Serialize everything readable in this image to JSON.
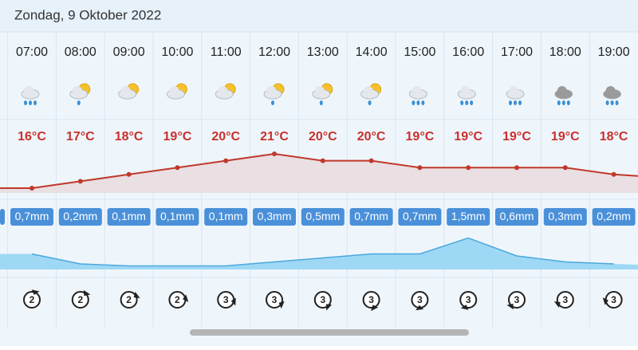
{
  "header": {
    "title": "Zondag, 9 Oktober 2022"
  },
  "hours": [
    {
      "time": "07:00",
      "temp": 16,
      "temp_label": "16°C",
      "precip": 0.7,
      "precip_label": "0,7mm",
      "wind": "2"
    },
    {
      "time": "08:00",
      "temp": 17,
      "temp_label": "17°C",
      "precip": 0.2,
      "precip_label": "0,2mm",
      "wind": "2"
    },
    {
      "time": "09:00",
      "temp": 18,
      "temp_label": "18°C",
      "precip": 0.1,
      "precip_label": "0,1mm",
      "wind": "2"
    },
    {
      "time": "10:00",
      "temp": 19,
      "temp_label": "19°C",
      "precip": 0.1,
      "precip_label": "0,1mm",
      "wind": "2"
    },
    {
      "time": "11:00",
      "temp": 20,
      "temp_label": "20°C",
      "precip": 0.1,
      "precip_label": "0,1mm",
      "wind": "3"
    },
    {
      "time": "12:00",
      "temp": 21,
      "temp_label": "21°C",
      "precip": 0.3,
      "precip_label": "0,3mm",
      "wind": "3"
    },
    {
      "time": "13:00",
      "temp": 20,
      "temp_label": "20°C",
      "precip": 0.5,
      "precip_label": "0,5mm",
      "wind": "3"
    },
    {
      "time": "14:00",
      "temp": 20,
      "temp_label": "20°C",
      "precip": 0.7,
      "precip_label": "0,7mm",
      "wind": "3"
    },
    {
      "time": "15:00",
      "temp": 19,
      "temp_label": "19°C",
      "precip": 0.7,
      "precip_label": "0,7mm",
      "wind": "3"
    },
    {
      "time": "16:00",
      "temp": 19,
      "temp_label": "19°C",
      "precip": 1.5,
      "precip_label": "1,5mm",
      "wind": "3"
    },
    {
      "time": "17:00",
      "temp": 19,
      "temp_label": "19°C",
      "precip": 0.6,
      "precip_label": "0,6mm",
      "wind": "3"
    },
    {
      "time": "18:00",
      "temp": 19,
      "temp_label": "19°C",
      "precip": 0.3,
      "precip_label": "0,3mm",
      "wind": "3"
    },
    {
      "time": "19:00",
      "temp": 18,
      "temp_label": "18°C",
      "precip": 0.2,
      "precip_label": "0,2mm",
      "wind": "3"
    }
  ]
}
